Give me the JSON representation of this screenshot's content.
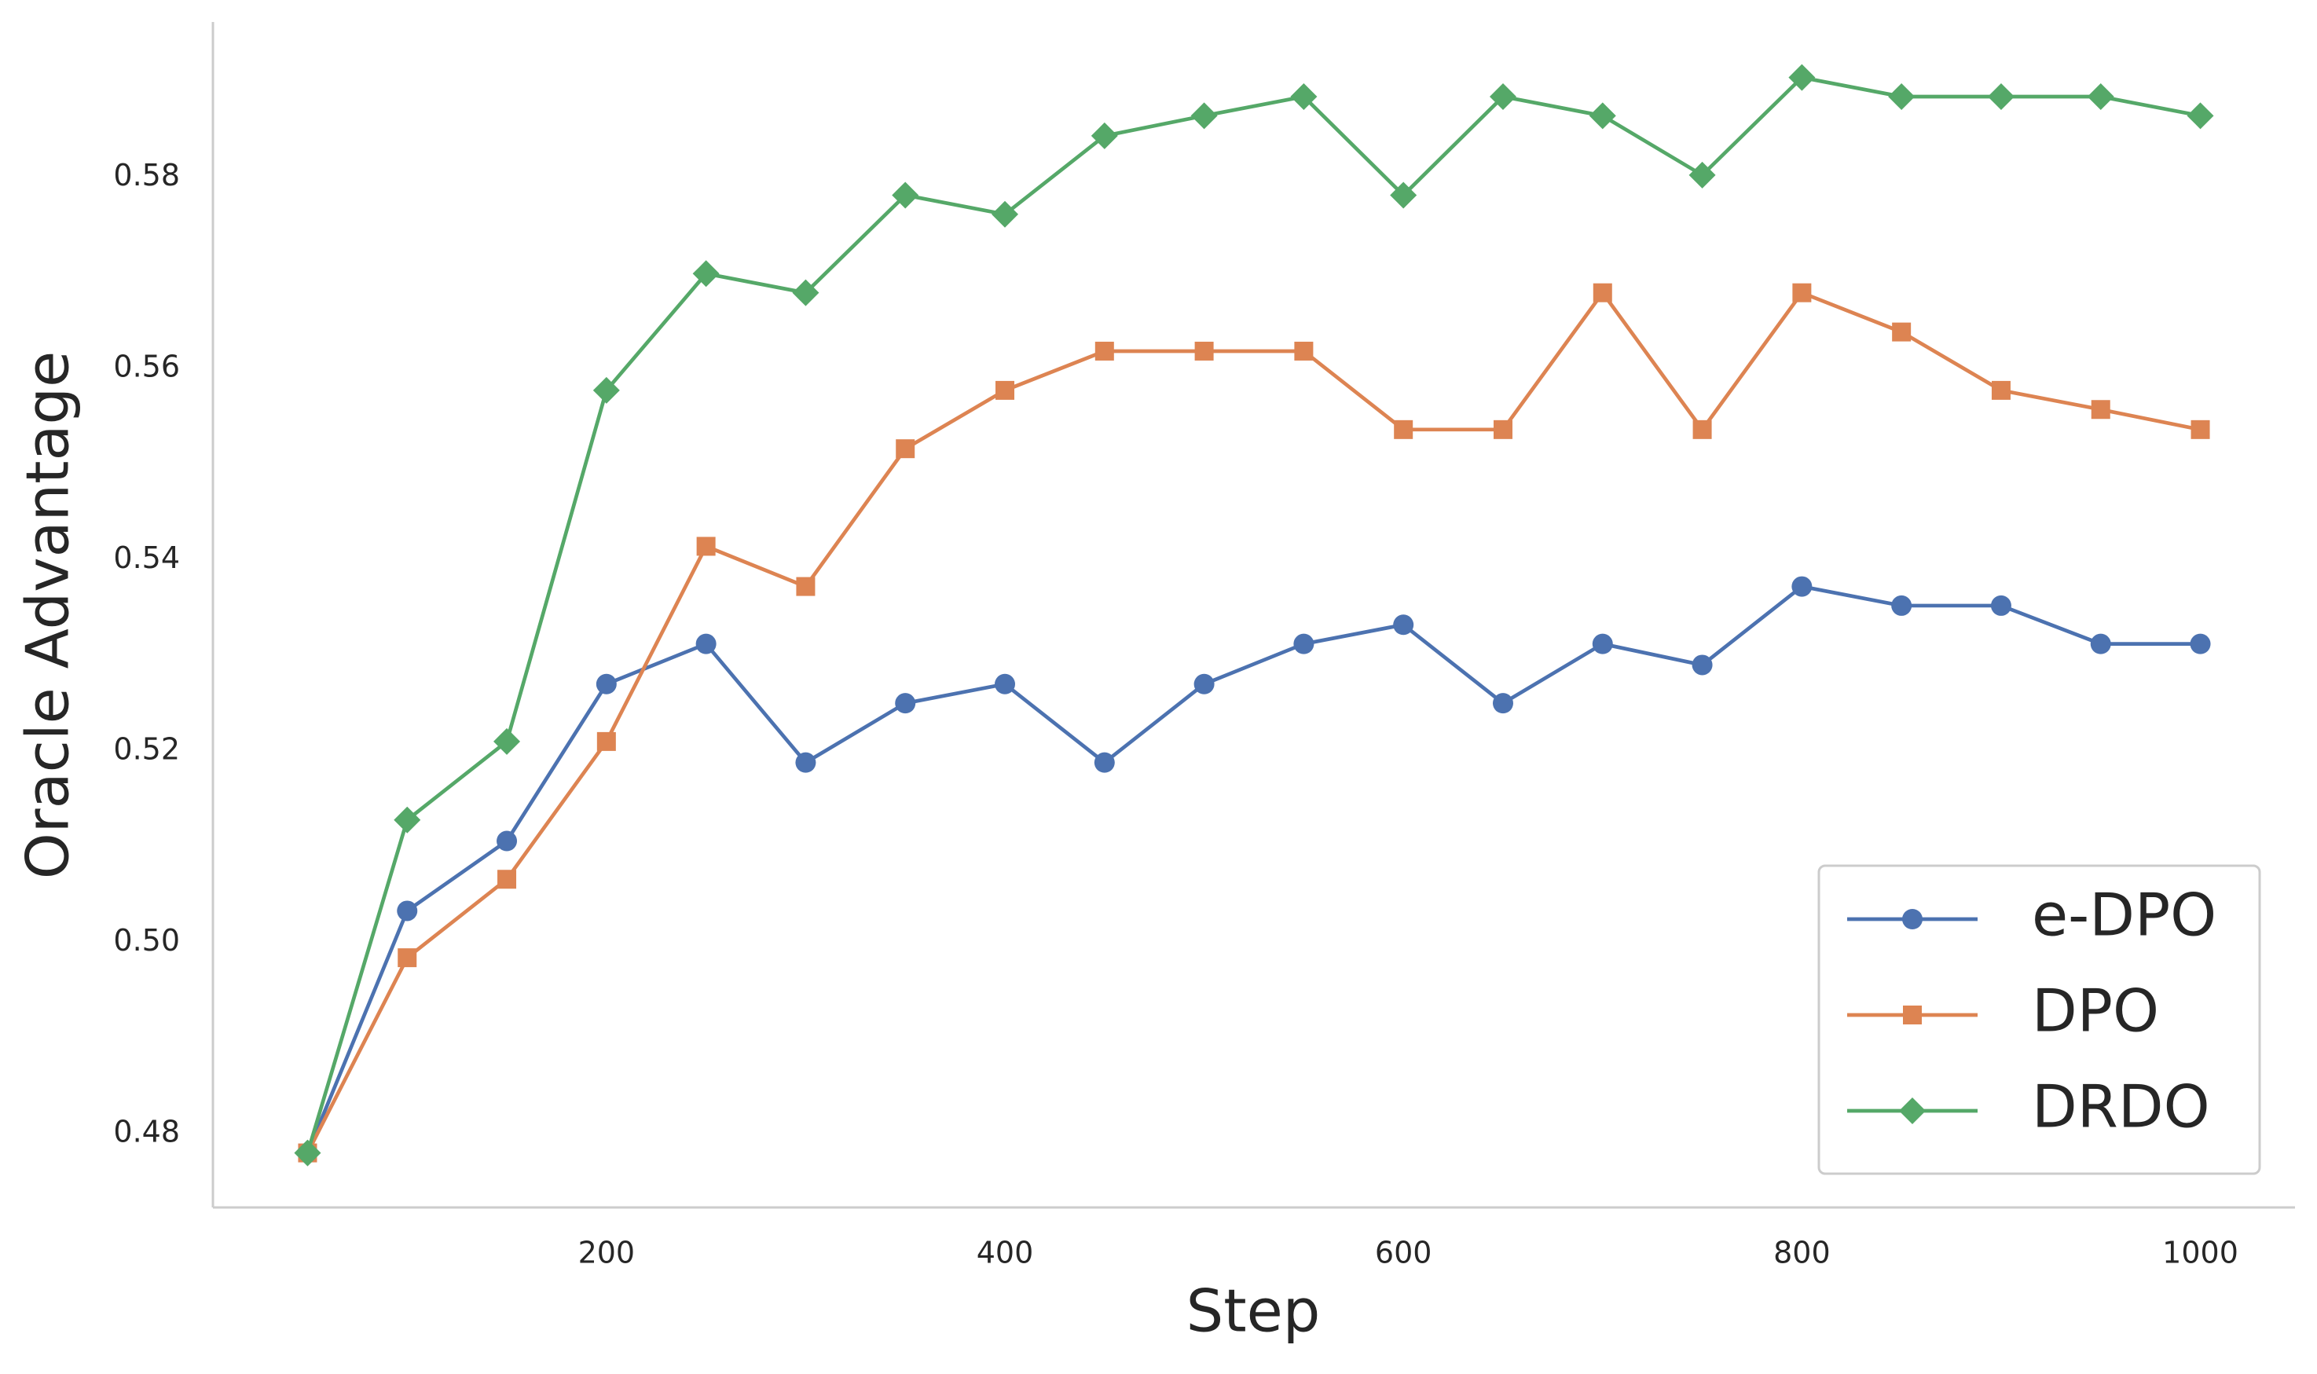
{
  "chart_data": {
    "type": "line",
    "xlabel": "Step",
    "ylabel": "Oracle Advantage",
    "x": [
      50,
      100,
      150,
      200,
      250,
      300,
      350,
      400,
      450,
      500,
      550,
      600,
      650,
      700,
      750,
      800,
      850,
      900,
      950,
      1000
    ],
    "series": [
      {
        "name": "e-DPO",
        "color": "#4c72b0",
        "marker": "circle",
        "values": [
          0.478,
          0.5033,
          0.5106,
          0.527,
          0.5312,
          0.5188,
          0.525,
          0.527,
          0.5188,
          0.527,
          0.5312,
          0.5332,
          0.525,
          0.5312,
          0.529,
          0.5372,
          0.5352,
          0.5352,
          0.5312,
          0.5312
        ]
      },
      {
        "name": "DPO",
        "color": "#dd8452",
        "marker": "square",
        "values": [
          0.478,
          0.4984,
          0.5066,
          0.521,
          0.5414,
          0.5372,
          0.5516,
          0.5577,
          0.5618,
          0.5618,
          0.5618,
          0.5536,
          0.5536,
          0.5679,
          0.5536,
          0.5679,
          0.5638,
          0.5577,
          0.5557,
          0.5536
        ]
      },
      {
        "name": "DRDO",
        "color": "#55a868",
        "marker": "diamond",
        "values": [
          0.478,
          0.5128,
          0.521,
          0.5577,
          0.5699,
          0.5679,
          0.5781,
          0.5761,
          0.5843,
          0.5864,
          0.5884,
          0.5781,
          0.5884,
          0.5864,
          0.5802,
          0.5904,
          0.5884,
          0.5884,
          0.5884,
          0.5864
        ]
      }
    ],
    "xlim": [
      2.5,
      1047.5
    ],
    "xticks": [
      200,
      400,
      600,
      800,
      1000
    ],
    "ylim": [
      0.4723,
      0.5962
    ],
    "yticks": [
      {
        "value": 0.48,
        "label": "0.48"
      },
      {
        "value": 0.5,
        "label": "0.50"
      },
      {
        "value": 0.52,
        "label": "0.52"
      },
      {
        "value": 0.54,
        "label": "0.54"
      },
      {
        "value": 0.56,
        "label": "0.56"
      },
      {
        "value": 0.58,
        "label": "0.58"
      }
    ],
    "grid": false,
    "legend": "lower right"
  }
}
